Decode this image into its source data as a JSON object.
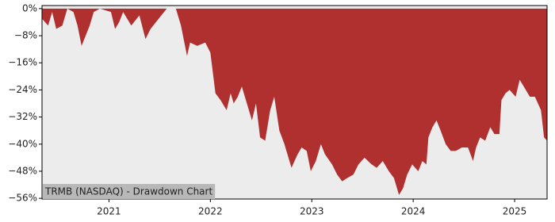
{
  "chart_data": {
    "type": "area",
    "title": "TRMB (NASDAQ) - Drawdown Chart",
    "x": [
      2020.34,
      2020.4,
      2020.44,
      2020.48,
      2020.54,
      2020.59,
      2020.65,
      2020.69,
      2020.73,
      2020.77,
      2020.81,
      2020.85,
      2020.91,
      2021.02,
      2021.06,
      2021.1,
      2021.14,
      2021.22,
      2021.3,
      2021.36,
      2021.41,
      2021.49,
      2021.57,
      2021.66,
      2021.71,
      2021.77,
      2021.8,
      2021.87,
      2021.95,
      2022.0,
      2022.05,
      2022.1,
      2022.16,
      2022.2,
      2022.23,
      2022.27,
      2022.31,
      2022.37,
      2022.41,
      2022.45,
      2022.49,
      2022.54,
      2022.59,
      2022.63,
      2022.68,
      2022.73,
      2022.76,
      2022.8,
      2022.86,
      2022.9,
      2022.95,
      2022.99,
      2023.04,
      2023.09,
      2023.13,
      2023.2,
      2023.25,
      2023.3,
      2023.35,
      2023.41,
      2023.46,
      2023.52,
      2023.59,
      2023.64,
      2023.7,
      2023.76,
      2023.81,
      2023.86,
      2023.9,
      2023.94,
      2023.99,
      2024.05,
      2024.09,
      2024.13,
      2024.15,
      2024.19,
      2024.23,
      2024.27,
      2024.32,
      2024.37,
      2024.42,
      2024.48,
      2024.54,
      2024.59,
      2024.62,
      2024.66,
      2024.71,
      2024.76,
      2024.8,
      2024.85,
      2024.87,
      2024.91,
      2024.95,
      2025.01,
      2025.05,
      2025.09,
      2025.15,
      2025.2,
      2025.26,
      2025.29,
      2025.32
    ],
    "values": [
      -3,
      -5,
      -1,
      -6,
      -5,
      0,
      -1,
      -5,
      -11,
      -8,
      -5,
      -1,
      0,
      -1,
      -6,
      -4,
      -1,
      -5,
      -2,
      -9,
      -6,
      -3,
      0,
      0,
      -5,
      -14,
      -10,
      -11,
      -10,
      -13,
      -25,
      -27,
      -30,
      -25,
      -28,
      -26,
      -23,
      -29,
      -33,
      -28,
      -38,
      -39,
      -30,
      -26,
      -36,
      -40,
      -43,
      -47,
      -43,
      -41,
      -42,
      -48,
      -45,
      -40,
      -43,
      -46,
      -49,
      -51,
      -50,
      -49,
      -46,
      -44,
      -46,
      -47,
      -45,
      -48,
      -50,
      -55,
      -53,
      -49,
      -46,
      -48,
      -45,
      -46,
      -38,
      -35,
      -33,
      -36,
      -40,
      -42,
      -42,
      -41,
      -41,
      -45,
      -41,
      -38,
      -39,
      -35,
      -37,
      -37,
      -27,
      -25,
      -24,
      -26,
      -21,
      -23,
      -26,
      -26,
      -30,
      -38,
      -39
    ],
    "color": "#b03030",
    "background": "#ececec",
    "xlim": [
      2020.34,
      2025.32
    ],
    "xticks": [
      2021,
      2022,
      2023,
      2024,
      2025
    ],
    "ylim": [
      -56.2,
      0.9
    ],
    "yticks": [
      {
        "value": 0,
        "label": "0%"
      },
      {
        "value": -8,
        "label": "−8%"
      },
      {
        "value": -16,
        "label": "−16%"
      },
      {
        "value": -24,
        "label": "−24%"
      },
      {
        "value": -32,
        "label": "−32%"
      },
      {
        "value": -40,
        "label": "−40%"
      },
      {
        "value": -48,
        "label": "−48%"
      },
      {
        "value": -56,
        "label": "−56%"
      }
    ]
  }
}
